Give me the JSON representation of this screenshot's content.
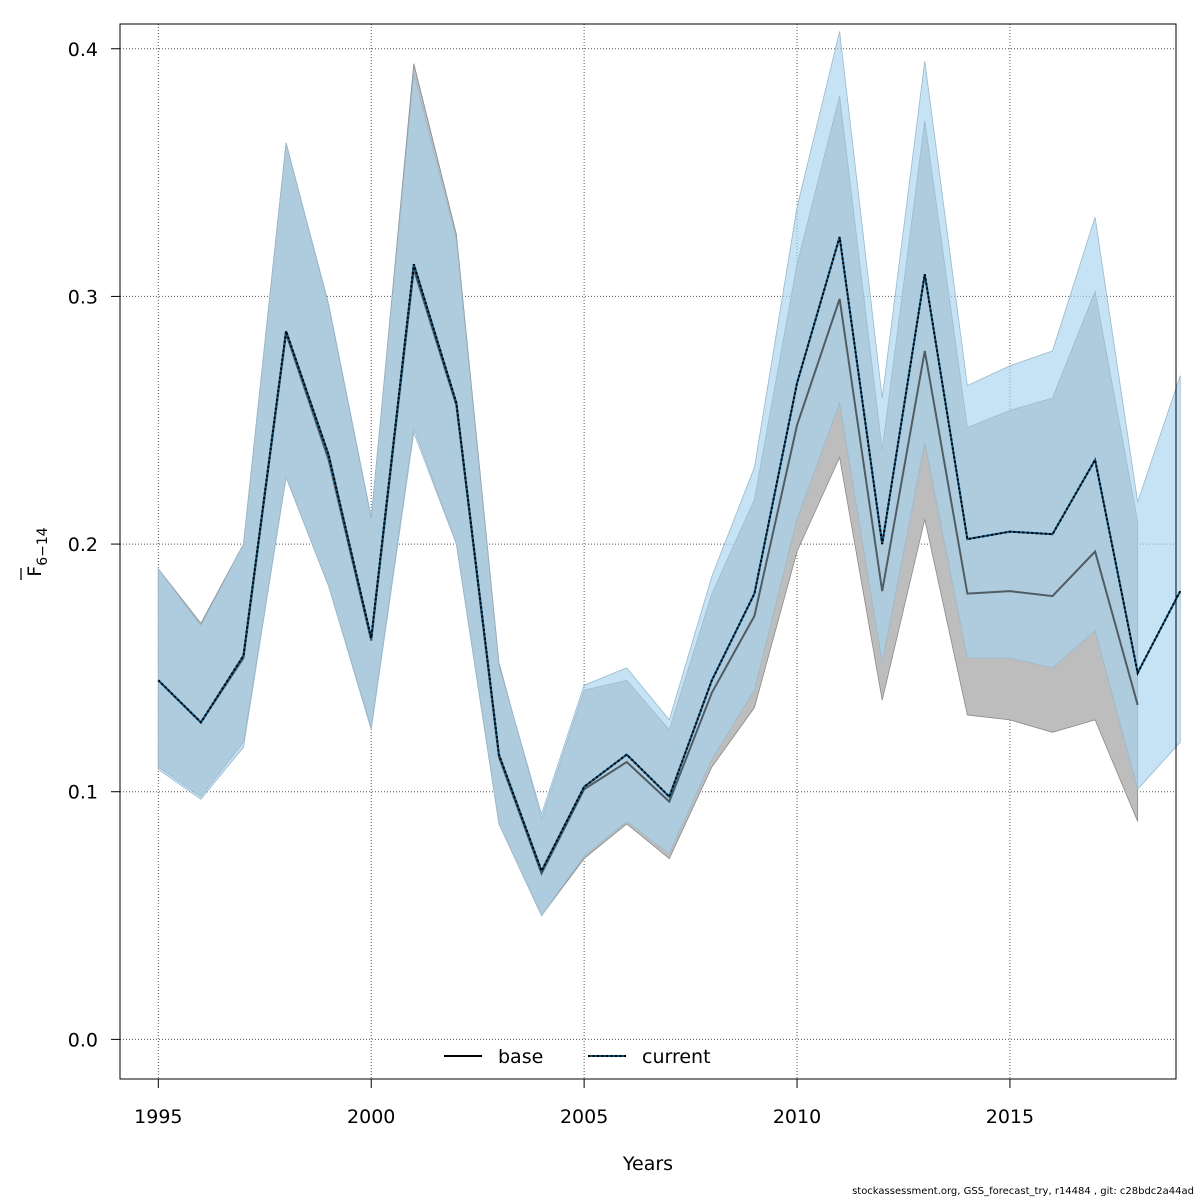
{
  "chart_data": {
    "type": "line",
    "xlabel": "Years",
    "ylabel_main": "F",
    "ylabel_sub": "6−14",
    "xlim": [
      1994.1,
      2018.9
    ],
    "ylim": [
      -0.016,
      0.41
    ],
    "x_ticks": [
      1995,
      2000,
      2005,
      2010,
      2015
    ],
    "y_ticks": [
      0.0,
      0.1,
      0.2,
      0.3,
      0.4
    ],
    "y_tick_labels": [
      "0.0",
      "0.1",
      "0.2",
      "0.3",
      "0.4"
    ],
    "grid": true,
    "legend_position": "bottom-center",
    "series": [
      {
        "name": "base",
        "line_style": "solid",
        "line_color": "#000000",
        "band_color": "#bdbdbd",
        "x": [
          1995,
          1996,
          1997,
          1998,
          1999,
          2000,
          2001,
          2002,
          2003,
          2004,
          2005,
          2006,
          2007,
          2008,
          2009,
          2010,
          2011,
          2012,
          2013,
          2014,
          2015,
          2016,
          2017,
          2018
        ],
        "values": [
          0.145,
          0.128,
          0.154,
          0.285,
          0.234,
          0.161,
          0.311,
          0.256,
          0.114,
          0.067,
          0.101,
          0.112,
          0.096,
          0.14,
          0.171,
          0.248,
          0.299,
          0.181,
          0.278,
          0.18,
          0.181,
          0.179,
          0.197,
          0.135
        ],
        "lower": [
          0.11,
          0.098,
          0.12,
          0.227,
          0.183,
          0.126,
          0.247,
          0.2,
          0.087,
          0.05,
          0.073,
          0.087,
          0.073,
          0.11,
          0.134,
          0.197,
          0.235,
          0.137,
          0.21,
          0.131,
          0.129,
          0.124,
          0.129,
          0.088
        ],
        "upper": [
          0.19,
          0.168,
          0.2,
          0.362,
          0.296,
          0.21,
          0.394,
          0.325,
          0.152,
          0.089,
          0.141,
          0.145,
          0.125,
          0.18,
          0.218,
          0.313,
          0.381,
          0.238,
          0.371,
          0.247,
          0.254,
          0.259,
          0.302,
          0.209
        ]
      },
      {
        "name": "current",
        "line_style": "dotted",
        "line_color": "#0a4f7a",
        "band_color": "#a8d4f0",
        "x": [
          1995,
          1996,
          1997,
          1998,
          1999,
          2000,
          2001,
          2002,
          2003,
          2004,
          2005,
          2006,
          2007,
          2008,
          2009,
          2010,
          2011,
          2012,
          2013,
          2014,
          2015,
          2016,
          2017,
          2018,
          2019
        ],
        "values": [
          0.145,
          0.128,
          0.155,
          0.286,
          0.236,
          0.162,
          0.313,
          0.257,
          0.115,
          0.068,
          0.102,
          0.115,
          0.098,
          0.145,
          0.18,
          0.265,
          0.324,
          0.2,
          0.309,
          0.202,
          0.205,
          0.204,
          0.234,
          0.148,
          0.181
        ],
        "lower": [
          0.109,
          0.097,
          0.118,
          0.227,
          0.183,
          0.125,
          0.245,
          0.2,
          0.087,
          0.05,
          0.074,
          0.088,
          0.075,
          0.113,
          0.141,
          0.21,
          0.257,
          0.152,
          0.241,
          0.154,
          0.154,
          0.15,
          0.165,
          0.101,
          0.12
        ],
        "upper": [
          0.19,
          0.167,
          0.2,
          0.362,
          0.297,
          0.211,
          0.39,
          0.323,
          0.151,
          0.091,
          0.143,
          0.15,
          0.129,
          0.187,
          0.231,
          0.336,
          0.407,
          0.259,
          0.395,
          0.264,
          0.272,
          0.278,
          0.332,
          0.217,
          0.268
        ]
      }
    ]
  },
  "footer_text": "stockassessment.org, GSS_forecast_try, r14484 , git: c28bdc2a44ad"
}
